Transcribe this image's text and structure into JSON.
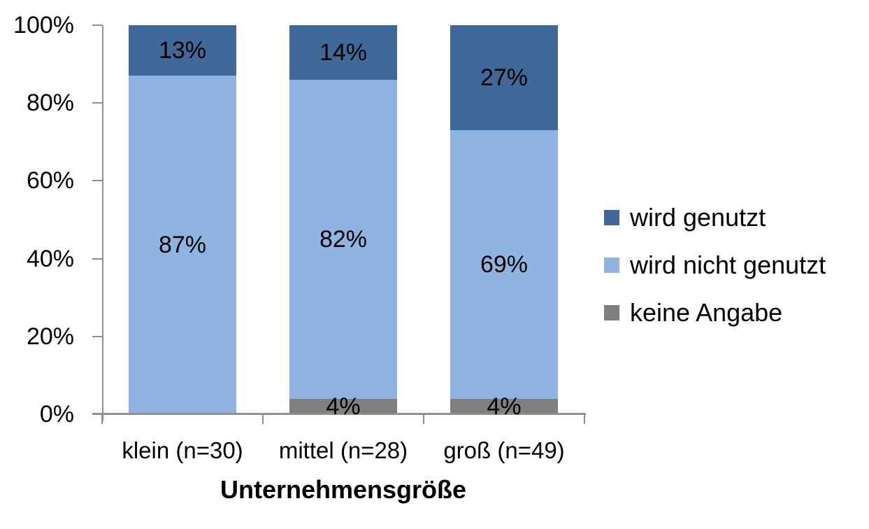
{
  "chart_data": {
    "type": "bar",
    "variant": "stacked-100",
    "title": "",
    "xlabel": "Unternehmensgröße",
    "ylabel": "",
    "categories": [
      "klein (n=30)",
      "mittel (n=28)",
      "groß (n=49)"
    ],
    "series": [
      {
        "name": "wird genutzt",
        "color": "#40699A",
        "values": [
          13,
          14,
          27
        ]
      },
      {
        "name": "wird nicht genutzt",
        "color": "#8FB4E1",
        "values": [
          87,
          82,
          69
        ]
      },
      {
        "name": "keine Angabe",
        "color": "#808080",
        "values": [
          0,
          4,
          4
        ]
      }
    ],
    "ylim": [
      0,
      100
    ],
    "yticks": [
      0,
      20,
      40,
      60,
      80,
      100
    ],
    "ytick_suffix": "%",
    "label_suffix": "%",
    "grid": false,
    "legend_position": "right",
    "axis_color": "#8e8e8e",
    "background": "#ffffff"
  }
}
